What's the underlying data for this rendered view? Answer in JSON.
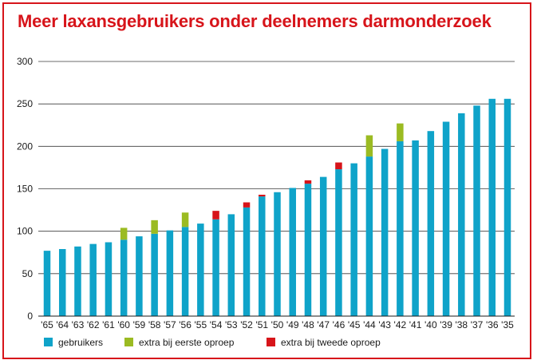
{
  "chart_data": {
    "type": "bar",
    "stacked": true,
    "title": "Meer laxansgebruikers onder deelnemers darmonderzoek",
    "xlabel": "",
    "ylabel": "",
    "ylim": [
      0,
      300
    ],
    "yticks": [
      0,
      50,
      100,
      150,
      200,
      250,
      300
    ],
    "grid": true,
    "legend_position": "bottom-left",
    "categories": [
      "'65",
      "'64",
      "'63",
      "'62",
      "'61",
      "'60",
      "'59",
      "'58",
      "'57",
      "'56",
      "'55",
      "'54",
      "'53",
      "'52",
      "'51",
      "'50",
      "'49",
      "'48",
      "'47",
      "'46",
      "'45",
      "'44",
      "'43",
      "'42",
      "'41",
      "'40",
      "'39",
      "'38",
      "'37",
      "'36",
      "'35"
    ],
    "series": [
      {
        "name": "gebruikers",
        "color": "#0fa3c9",
        "values": [
          77,
          79,
          82,
          85,
          87,
          90,
          94,
          97,
          101,
          105,
          109,
          114,
          120,
          128,
          141,
          146,
          151,
          156,
          164,
          173,
          180,
          188,
          197,
          206,
          207,
          218,
          229,
          239,
          248,
          256,
          256
        ]
      },
      {
        "name": "extra bij eerste oproep",
        "color": "#9bbb22",
        "values": [
          0,
          0,
          0,
          0,
          0,
          14,
          0,
          16,
          0,
          17,
          0,
          0,
          0,
          0,
          0,
          0,
          0,
          0,
          0,
          0,
          0,
          25,
          0,
          21,
          0,
          0,
          0,
          0,
          0,
          0,
          0
        ]
      },
      {
        "name": "extra bij tweede oproep",
        "color": "#d7141a",
        "values": [
          0,
          0,
          0,
          0,
          0,
          0,
          0,
          0,
          0,
          0,
          0,
          10,
          0,
          6,
          2,
          0,
          0,
          4,
          0,
          8,
          0,
          0,
          0,
          0,
          0,
          0,
          0,
          0,
          0,
          0,
          0
        ]
      }
    ]
  }
}
